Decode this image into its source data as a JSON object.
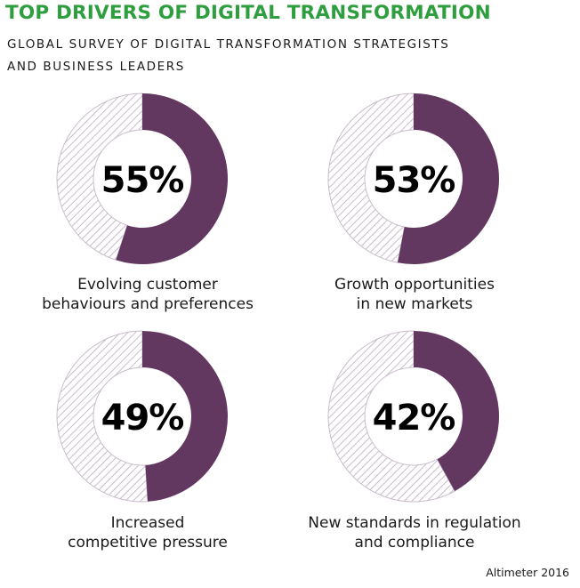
{
  "title": "TOP DRIVERS OF DIGITAL TRANSFORMATION",
  "subtitle_lines": [
    "GLOBAL SURVEY OF DIGITAL TRANSFORMATION STRATEGISTS",
    "AND BUSINESS LEADERS"
  ],
  "source": "Altimeter 2016",
  "colors": {
    "title": "#2e9e3f",
    "filled": "#633860",
    "hatch": "#c9bccb",
    "background": "#ffffff"
  },
  "chart_data": {
    "type": "pie",
    "title": "TOP DRIVERS OF DIGITAL TRANSFORMATION",
    "subtitle": "GLOBAL SURVEY OF DIGITAL TRANSFORMATION STRATEGISTS AND BUSINESS LEADERS",
    "charts": [
      {
        "label_lines": [
          "Evolving customer",
          "behaviours and preferences"
        ],
        "value": 55,
        "value_label": "55%"
      },
      {
        "label_lines": [
          "Growth opportunities",
          "in new markets"
        ],
        "value": 53,
        "value_label": "53%"
      },
      {
        "label_lines": [
          "Increased",
          "competitive pressure"
        ],
        "value": 49,
        "value_label": "49%"
      },
      {
        "label_lines": [
          "New standards in regulation",
          "and compliance"
        ],
        "value": 42,
        "value_label": "42%"
      }
    ]
  }
}
